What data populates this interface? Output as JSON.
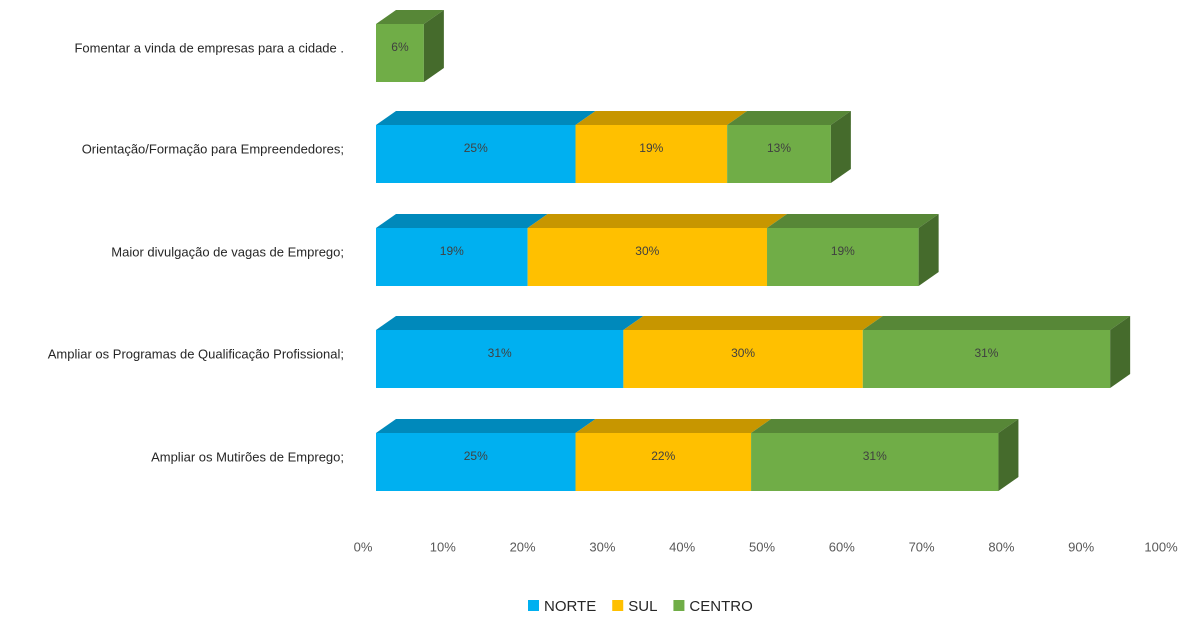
{
  "chart_data": {
    "type": "bar",
    "orientation": "horizontal",
    "stacked": true,
    "style": "3d",
    "categories": [
      "Fomentar a vinda de empresas para a cidade .",
      "Orientação/Formação para Empreendedores;",
      "Maior divulgação de vagas de Emprego;",
      "Ampliar os Programas de Qualificação Profissional;",
      "Ampliar os Mutirões de Emprego;"
    ],
    "series": [
      {
        "name": "NORTE",
        "color": "#00B0F0",
        "values": [
          0,
          25,
          19,
          31,
          25
        ],
        "labels": [
          "",
          "25%",
          "19%",
          "31%",
          "25%"
        ]
      },
      {
        "name": "SUL",
        "color": "#FFC000",
        "values": [
          0,
          19,
          30,
          30,
          22
        ],
        "labels": [
          "",
          "19%",
          "30%",
          "30%",
          "22%"
        ]
      },
      {
        "name": "CENTRO",
        "color": "#70AD47",
        "values": [
          6,
          13,
          19,
          31,
          31
        ],
        "labels": [
          "6%",
          "13%",
          "19%",
          "31%",
          "31%"
        ]
      }
    ],
    "x_ticks": [
      "0%",
      "10%",
      "20%",
      "30%",
      "40%",
      "50%",
      "60%",
      "70%",
      "80%",
      "90%",
      "100%"
    ],
    "xlim": [
      0,
      100
    ],
    "grid": false,
    "legend_position": "bottom",
    "title": "",
    "xlabel": "",
    "ylabel": ""
  }
}
